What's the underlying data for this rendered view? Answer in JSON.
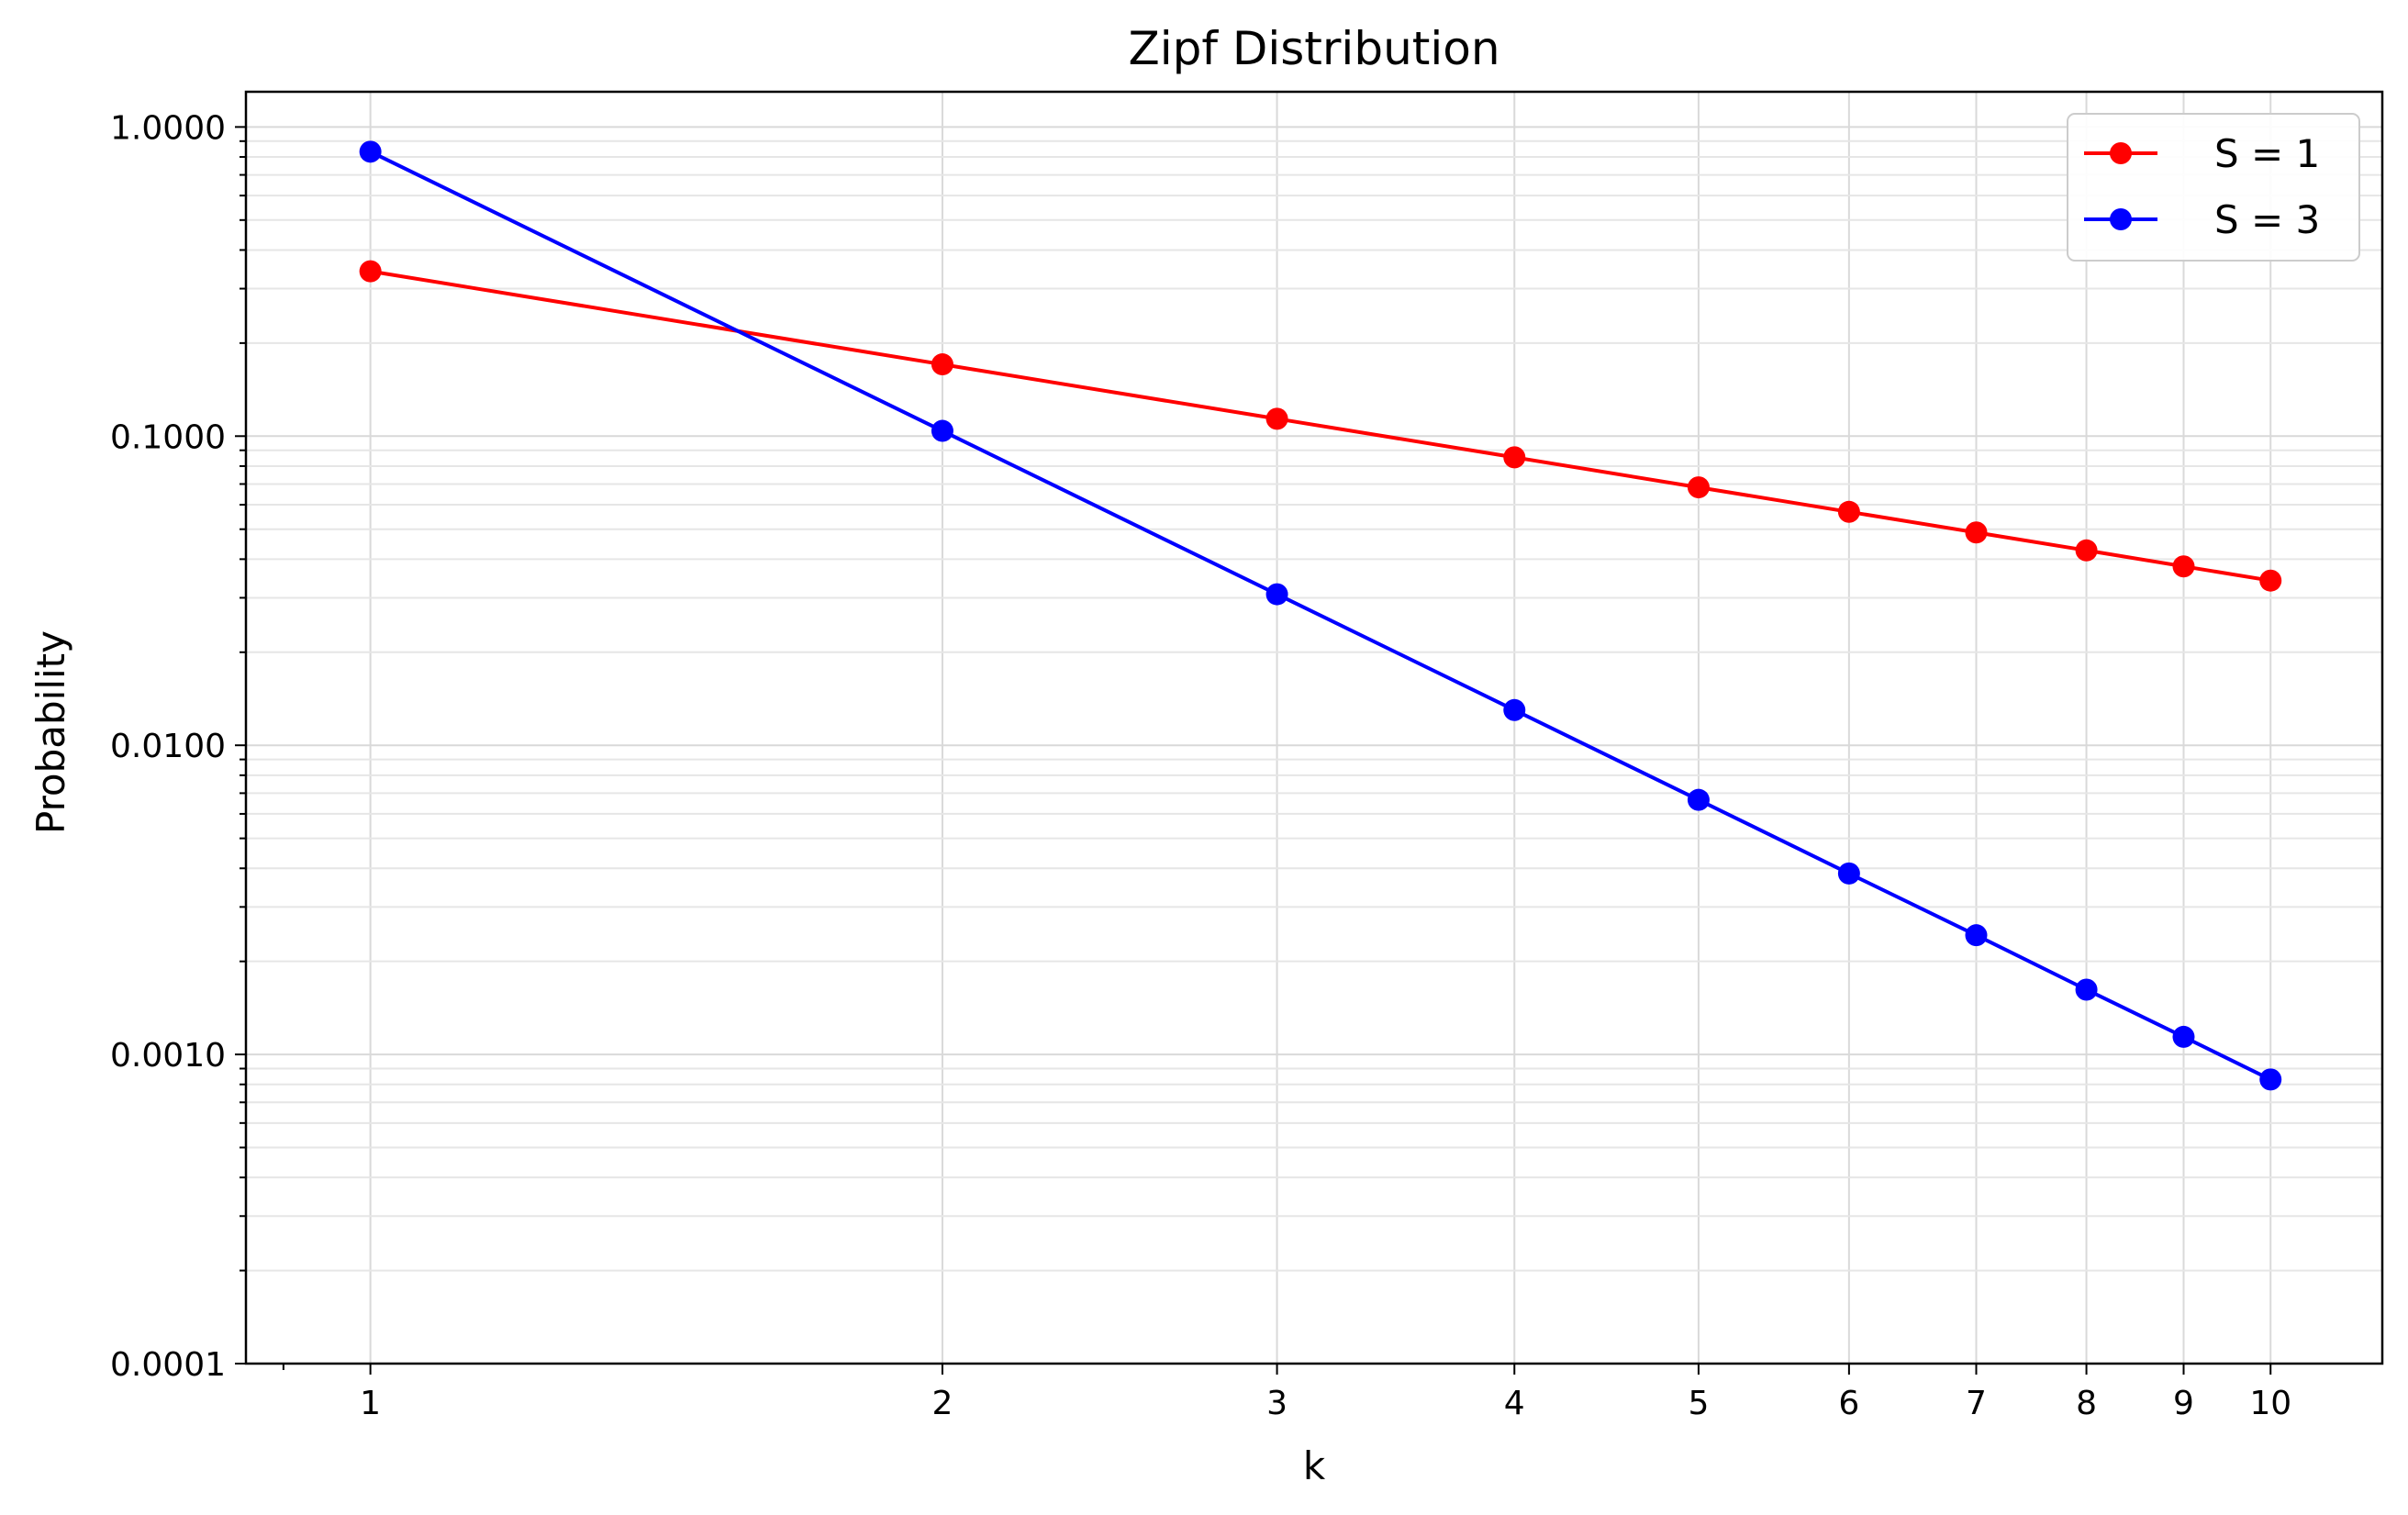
{
  "chart_data": {
    "type": "line",
    "title": "Zipf Distribution",
    "xlabel": "k",
    "ylabel": "Probability",
    "x_scale": "log",
    "y_scale": "log",
    "x": [
      1,
      2,
      3,
      4,
      5,
      6,
      7,
      8,
      9,
      10
    ],
    "x_tick_labels": [
      "1",
      "2",
      "3",
      "4",
      "5",
      "6",
      "7",
      "8",
      "9",
      "10"
    ],
    "ylim": [
      0.0001,
      1.3
    ],
    "y_ticks": [
      0.0001,
      0.001,
      0.01,
      0.1,
      1.0
    ],
    "y_tick_labels": [
      "0.0001",
      "0.0010",
      "0.0100",
      "0.1000",
      "1.0000"
    ],
    "grid": true,
    "legend_position": "top-right",
    "series": [
      {
        "name": "S = 1",
        "color": "#ff0000",
        "marker": "circle",
        "values": [
          0.3414,
          0.1707,
          0.1138,
          0.0854,
          0.0683,
          0.0569,
          0.0488,
          0.0427,
          0.0379,
          0.0341
        ]
      },
      {
        "name": "S = 3",
        "color": "#0000ff",
        "marker": "circle",
        "values": [
          0.8319,
          0.104,
          0.0308,
          0.013,
          0.00666,
          0.00385,
          0.00243,
          0.00162,
          0.00114,
          0.00083
        ]
      }
    ]
  }
}
